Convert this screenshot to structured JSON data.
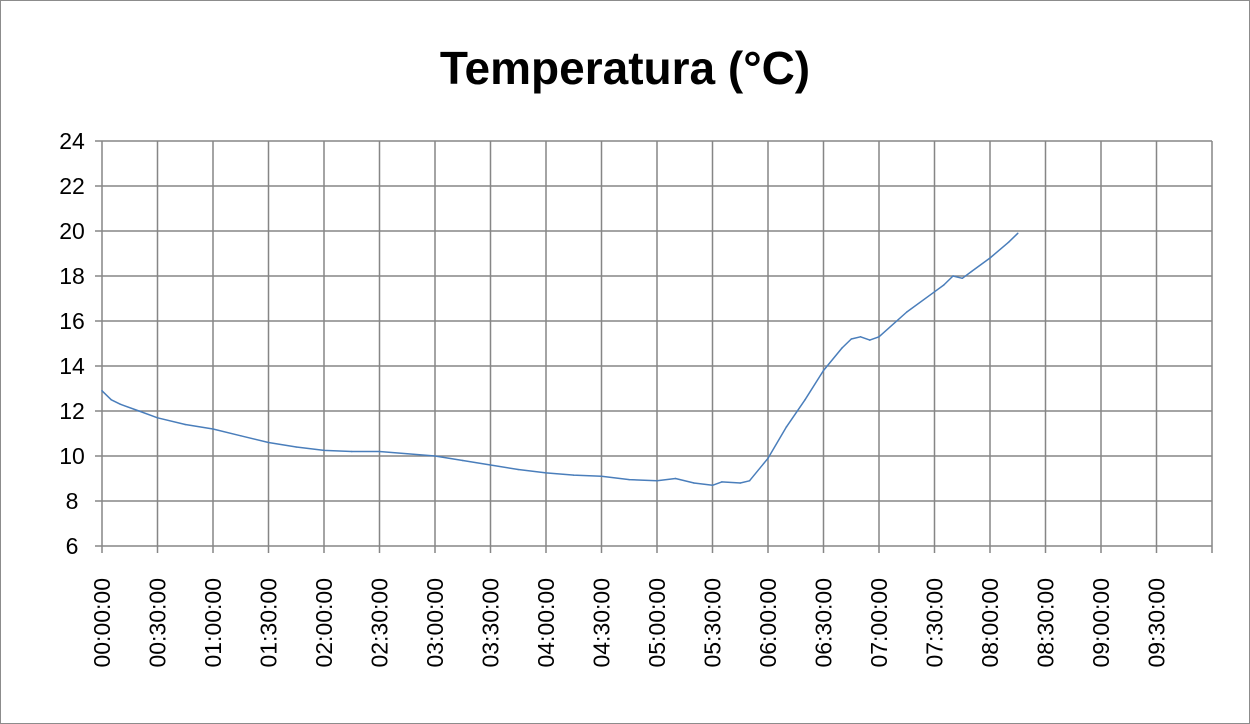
{
  "chart_data": {
    "type": "line",
    "title": "Temperatura (°C)",
    "xlabel": "",
    "ylabel": "",
    "grid": true,
    "legend": "none",
    "ylim": [
      6,
      24
    ],
    "yticks": [
      "6",
      "8",
      "10",
      "12",
      "14",
      "16",
      "18",
      "20",
      "22",
      "24"
    ],
    "xlim": [
      "00:00:00",
      "10:00:00"
    ],
    "xticks": [
      "00:00:00",
      "00:30:00",
      "01:00:00",
      "01:30:00",
      "02:00:00",
      "02:30:00",
      "03:00:00",
      "03:30:00",
      "04:00:00",
      "04:30:00",
      "05:00:00",
      "05:30:00",
      "06:00:00",
      "06:30:00",
      "07:00:00",
      "07:30:00",
      "08:00:00",
      "08:30:00",
      "09:00:00",
      "09:30:00"
    ],
    "colors": {
      "line": "#4a7ebb",
      "grid": "#868686",
      "axis": "#868686"
    },
    "series": [
      {
        "x": [
          "00:00:00",
          "00:05:00",
          "00:10:00",
          "00:20:00",
          "00:30:00",
          "00:45:00",
          "01:00:00",
          "01:15:00",
          "01:30:00",
          "01:45:00",
          "02:00:00",
          "02:15:00",
          "02:30:00",
          "02:45:00",
          "03:00:00",
          "03:15:00",
          "03:30:00",
          "03:45:00",
          "04:00:00",
          "04:15:00",
          "04:30:00",
          "04:45:00",
          "05:00:00",
          "05:10:00",
          "05:20:00",
          "05:30:00",
          "05:35:00",
          "05:45:00",
          "05:50:00",
          "06:00:00",
          "06:10:00",
          "06:20:00",
          "06:30:00",
          "06:40:00",
          "06:45:00",
          "06:50:00",
          "06:55:00",
          "07:00:00",
          "07:15:00",
          "07:30:00",
          "07:35:00",
          "07:40:00",
          "07:45:00",
          "07:50:00",
          "08:00:00",
          "08:10:00",
          "08:15:00"
        ],
        "values": [
          12.9,
          12.5,
          12.3,
          12.0,
          11.7,
          11.4,
          11.2,
          10.9,
          10.6,
          10.4,
          10.25,
          10.2,
          10.2,
          10.1,
          10.0,
          9.8,
          9.6,
          9.4,
          9.25,
          9.15,
          9.1,
          8.95,
          8.9,
          9.0,
          8.8,
          8.7,
          8.85,
          8.8,
          8.9,
          9.9,
          11.3,
          12.5,
          13.8,
          14.8,
          15.2,
          15.3,
          15.15,
          15.3,
          16.4,
          17.3,
          17.6,
          18.0,
          17.9,
          18.2,
          18.8,
          19.5,
          19.9
        ]
      }
    ]
  }
}
